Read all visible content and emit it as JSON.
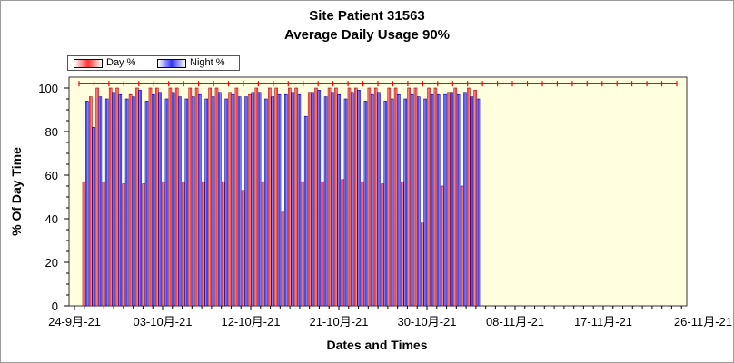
{
  "chart_data": {
    "type": "bar",
    "title": "Site Patient 31563",
    "subtitle": "Average Daily Usage 90%",
    "xlabel": "Dates and Times",
    "ylabel": "% Of Day Time",
    "ylim": [
      0,
      105
    ],
    "yticks": [
      0,
      20,
      40,
      60,
      80,
      100
    ],
    "xticks": [
      "24-9月-21",
      "03-10月-21",
      "12-10月-21",
      "21-10月-21",
      "30-10月-21",
      "08-11月-21",
      "17-11月-21",
      "26-11月-21"
    ],
    "legend": "top-left",
    "grid": false,
    "colors": {
      "day": "#ff3333",
      "night": "#3333ff",
      "plot_bg": "#ffffe0"
    },
    "series": [
      {
        "name": "Day %",
        "values": [
          57,
          96,
          100,
          57,
          100,
          100,
          56,
          97,
          100,
          56,
          100,
          100,
          57,
          100,
          100,
          57,
          100,
          100,
          57,
          100,
          100,
          57,
          98,
          100,
          53,
          97,
          100,
          57,
          100,
          100,
          43,
          100,
          100,
          57,
          98,
          100,
          57,
          100,
          100,
          58,
          100,
          100,
          57,
          100,
          100,
          56,
          100,
          100,
          57,
          100,
          100,
          38,
          100,
          100,
          55,
          98,
          100,
          55,
          100,
          99
        ]
      },
      {
        "name": "Night %",
        "values": [
          94,
          82,
          96,
          95,
          98,
          97,
          95,
          96,
          99,
          94,
          97,
          98,
          95,
          98,
          96,
          95,
          96,
          97,
          95,
          96,
          98,
          95,
          97,
          96,
          96,
          98,
          98,
          95,
          96,
          97,
          97,
          98,
          97,
          87,
          98,
          99,
          96,
          98,
          97,
          95,
          98,
          99,
          94,
          97,
          98,
          94,
          95,
          97,
          95,
          97,
          96,
          95,
          97,
          97,
          97,
          98,
          97,
          98,
          96,
          95
        ]
      }
    ]
  }
}
